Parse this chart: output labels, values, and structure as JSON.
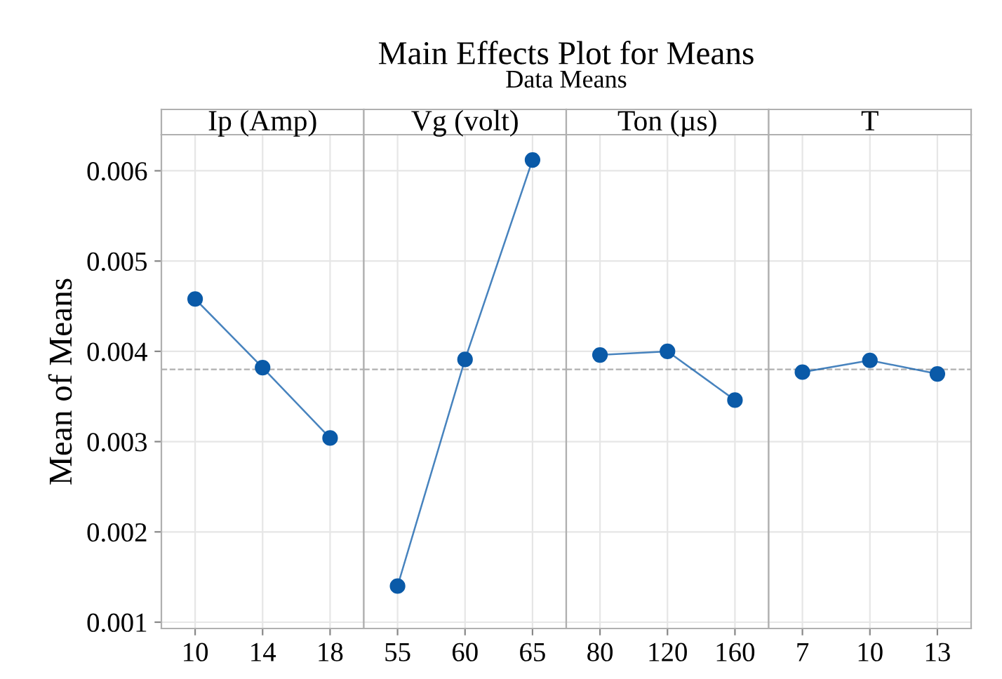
{
  "chart_data": [
    {
      "type": "line",
      "title": "Ip (Amp)",
      "categories": [
        "10",
        "14",
        "18"
      ],
      "values": [
        0.00458,
        0.00382,
        0.00304
      ],
      "color": "#0a5aa8",
      "ylim": [
        0.00093,
        0.0064
      ],
      "yticks": [
        0.001,
        0.002,
        0.003,
        0.004,
        0.005,
        0.006
      ],
      "ylabel": "Mean of Means",
      "grid": true,
      "marker": "circle",
      "line_style": "solid",
      "ref_lines": [
        {
          "axis": "y",
          "value": 0.0038,
          "color": "#b0b0b0",
          "line_style": "dashed"
        }
      ],
      "annotations": [
        "Main Effects Plot for Means",
        "Data Means"
      ]
    },
    {
      "type": "line",
      "title": "Vg (volt)",
      "categories": [
        "55",
        "60",
        "65"
      ],
      "values": [
        0.0014,
        0.00391,
        0.00612
      ],
      "color": "#0a5aa8",
      "ylim": [
        0.00093,
        0.0064
      ],
      "tick_labels": "x",
      "grid": true,
      "marker": "circle",
      "line_style": "solid",
      "ref_lines": [
        {
          "axis": "y",
          "value": 0.0038,
          "color": "#b0b0b0",
          "line_style": "dashed"
        }
      ]
    },
    {
      "type": "line",
      "title": "Ton (µs)",
      "categories": [
        "80",
        "120",
        "160"
      ],
      "values": [
        0.00396,
        0.004,
        0.00346
      ],
      "color": "#0a5aa8",
      "ylim": [
        0.00093,
        0.0064
      ],
      "tick_labels": "x",
      "grid": true,
      "marker": "circle",
      "line_style": "solid",
      "ref_lines": [
        {
          "axis": "y",
          "value": 0.0038,
          "color": "#b0b0b0",
          "line_style": "dashed"
        }
      ]
    },
    {
      "type": "line",
      "title": "T",
      "categories": [
        "7",
        "10",
        "13"
      ],
      "values": [
        0.00377,
        0.0039,
        0.00375
      ],
      "color": "#0a5aa8",
      "ylim": [
        0.00093,
        0.0064
      ],
      "tick_labels": "x",
      "grid": true,
      "marker": "circle",
      "line_style": "solid",
      "ref_lines": [
        {
          "axis": "y",
          "value": 0.0038,
          "color": "#b0b0b0",
          "line_style": "dashed"
        }
      ]
    }
  ]
}
